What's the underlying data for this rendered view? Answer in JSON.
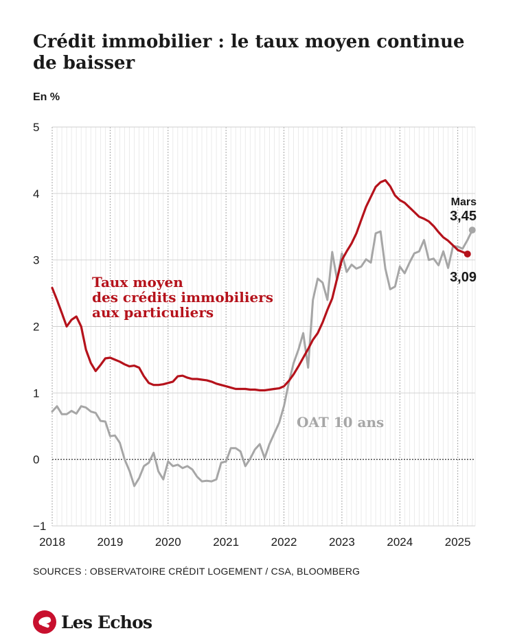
{
  "header": {
    "title": "Crédit immobilier : le taux moyen continue de baisser",
    "unit_label": "En %"
  },
  "footer": {
    "sources": "SOURCES : OBSERVATOIRE CRÉDIT LOGEMENT / CSA, BLOOMBERG",
    "brand": "Les Echos"
  },
  "chart_data": {
    "type": "line",
    "title": "Crédit immobilier : le taux moyen continue de baisser",
    "ylabel": "En %",
    "xlim": [
      2018.0,
      2025.3
    ],
    "ylim": [
      -1,
      5
    ],
    "x_ticks": [
      {
        "label": "2018",
        "x": 2018.0
      },
      {
        "label": "2019",
        "x": 2019.0
      },
      {
        "label": "2020",
        "x": 2020.0
      },
      {
        "label": "2021",
        "x": 2021.0
      },
      {
        "label": "2022",
        "x": 2022.0
      },
      {
        "label": "2023",
        "x": 2023.0
      },
      {
        "label": "2024",
        "x": 2024.0
      },
      {
        "label": "2025",
        "x": 2025.0
      }
    ],
    "y_ticks": [
      {
        "label": "5",
        "value": 5
      },
      {
        "label": "4",
        "value": 4
      },
      {
        "label": "3",
        "value": 3
      },
      {
        "label": "2",
        "value": 2
      },
      {
        "label": "1",
        "value": 1
      },
      {
        "label": "0",
        "value": 0
      },
      {
        "label": "−1",
        "value": -1
      }
    ],
    "grid": true,
    "zero_line": "dashed",
    "series": [
      {
        "name": "Taux moyen des crédits immobiliers aux particuliers",
        "label_lines": [
          "Taux moyen",
          "des crédits immobiliers",
          "aux particuliers"
        ],
        "color": "#b5121b",
        "x": [
          2018.0,
          2018.083,
          2018.167,
          2018.25,
          2018.333,
          2018.417,
          2018.5,
          2018.583,
          2018.667,
          2018.75,
          2018.833,
          2018.917,
          2019.0,
          2019.083,
          2019.167,
          2019.25,
          2019.333,
          2019.417,
          2019.5,
          2019.583,
          2019.667,
          2019.75,
          2019.833,
          2019.917,
          2020.0,
          2020.083,
          2020.167,
          2020.25,
          2020.333,
          2020.417,
          2020.5,
          2020.583,
          2020.667,
          2020.75,
          2020.833,
          2020.917,
          2021.0,
          2021.083,
          2021.167,
          2021.25,
          2021.333,
          2021.417,
          2021.5,
          2021.583,
          2021.667,
          2021.75,
          2021.833,
          2021.917,
          2022.0,
          2022.083,
          2022.167,
          2022.25,
          2022.333,
          2022.417,
          2022.5,
          2022.583,
          2022.667,
          2022.75,
          2022.833,
          2022.917,
          2023.0,
          2023.083,
          2023.167,
          2023.25,
          2023.333,
          2023.417,
          2023.5,
          2023.583,
          2023.667,
          2023.75,
          2023.833,
          2023.917,
          2024.0,
          2024.083,
          2024.167,
          2024.25,
          2024.333,
          2024.417,
          2024.5,
          2024.583,
          2024.667,
          2024.75,
          2024.833,
          2024.917,
          2025.0,
          2025.083,
          2025.167
        ],
        "values": [
          2.58,
          2.4,
          2.2,
          2.0,
          2.1,
          2.15,
          2.0,
          1.65,
          1.45,
          1.33,
          1.42,
          1.52,
          1.53,
          1.5,
          1.47,
          1.43,
          1.4,
          1.41,
          1.38,
          1.25,
          1.15,
          1.12,
          1.12,
          1.13,
          1.15,
          1.17,
          1.25,
          1.26,
          1.23,
          1.21,
          1.21,
          1.2,
          1.19,
          1.17,
          1.14,
          1.12,
          1.1,
          1.08,
          1.06,
          1.06,
          1.06,
          1.05,
          1.05,
          1.04,
          1.04,
          1.05,
          1.06,
          1.07,
          1.1,
          1.18,
          1.28,
          1.4,
          1.53,
          1.66,
          1.8,
          1.9,
          2.06,
          2.25,
          2.42,
          2.72,
          3.0,
          3.13,
          3.25,
          3.4,
          3.6,
          3.8,
          3.95,
          4.1,
          4.17,
          4.2,
          4.11,
          3.97,
          3.9,
          3.86,
          3.79,
          3.72,
          3.65,
          3.62,
          3.58,
          3.51,
          3.42,
          3.34,
          3.29,
          3.22,
          3.15,
          3.12,
          3.09
        ]
      },
      {
        "name": "OAT 10 ans",
        "label_lines": [
          "OAT 10 ans"
        ],
        "color": "#a6a6a6",
        "x": [
          2018.0,
          2018.083,
          2018.167,
          2018.25,
          2018.333,
          2018.417,
          2018.5,
          2018.583,
          2018.667,
          2018.75,
          2018.833,
          2018.917,
          2019.0,
          2019.083,
          2019.167,
          2019.25,
          2019.333,
          2019.417,
          2019.5,
          2019.583,
          2019.667,
          2019.75,
          2019.833,
          2019.917,
          2020.0,
          2020.083,
          2020.167,
          2020.25,
          2020.333,
          2020.417,
          2020.5,
          2020.583,
          2020.667,
          2020.75,
          2020.833,
          2020.917,
          2021.0,
          2021.083,
          2021.167,
          2021.25,
          2021.333,
          2021.417,
          2021.5,
          2021.583,
          2021.667,
          2021.75,
          2021.833,
          2021.917,
          2022.0,
          2022.083,
          2022.167,
          2022.25,
          2022.333,
          2022.417,
          2022.5,
          2022.583,
          2022.667,
          2022.75,
          2022.833,
          2022.917,
          2023.0,
          2023.083,
          2023.167,
          2023.25,
          2023.333,
          2023.417,
          2023.5,
          2023.583,
          2023.667,
          2023.75,
          2023.833,
          2023.917,
          2024.0,
          2024.083,
          2024.167,
          2024.25,
          2024.333,
          2024.417,
          2024.5,
          2024.583,
          2024.667,
          2024.75,
          2024.833,
          2024.917,
          2025.0,
          2025.083,
          2025.167,
          2025.25
        ],
        "values": [
          0.72,
          0.8,
          0.68,
          0.68,
          0.73,
          0.69,
          0.8,
          0.78,
          0.72,
          0.7,
          0.58,
          0.57,
          0.35,
          0.36,
          0.25,
          0.0,
          -0.17,
          -0.4,
          -0.28,
          -0.1,
          -0.05,
          0.1,
          -0.18,
          -0.3,
          -0.03,
          -0.1,
          -0.08,
          -0.13,
          -0.1,
          -0.15,
          -0.26,
          -0.33,
          -0.32,
          -0.33,
          -0.3,
          -0.05,
          -0.03,
          0.17,
          0.17,
          0.12,
          -0.1,
          0.01,
          0.15,
          0.23,
          0.02,
          0.23,
          0.39,
          0.55,
          0.8,
          1.15,
          1.45,
          1.65,
          1.9,
          1.38,
          2.4,
          2.72,
          2.66,
          2.4,
          3.12,
          2.7,
          3.1,
          2.82,
          2.93,
          2.87,
          2.9,
          3.01,
          2.96,
          3.4,
          3.43,
          2.87,
          2.56,
          2.6,
          2.9,
          2.8,
          2.96,
          3.1,
          3.13,
          3.3,
          3.0,
          3.02,
          2.92,
          3.13,
          2.88,
          3.21,
          3.2,
          3.17,
          3.3,
          3.45
        ]
      }
    ],
    "annotations": [
      {
        "label": "Mars",
        "value_label": "3,45",
        "series": "OAT 10 ans"
      },
      {
        "value_label": "3,09",
        "series": "Taux moyen des crédits immobiliers aux particuliers"
      }
    ]
  }
}
